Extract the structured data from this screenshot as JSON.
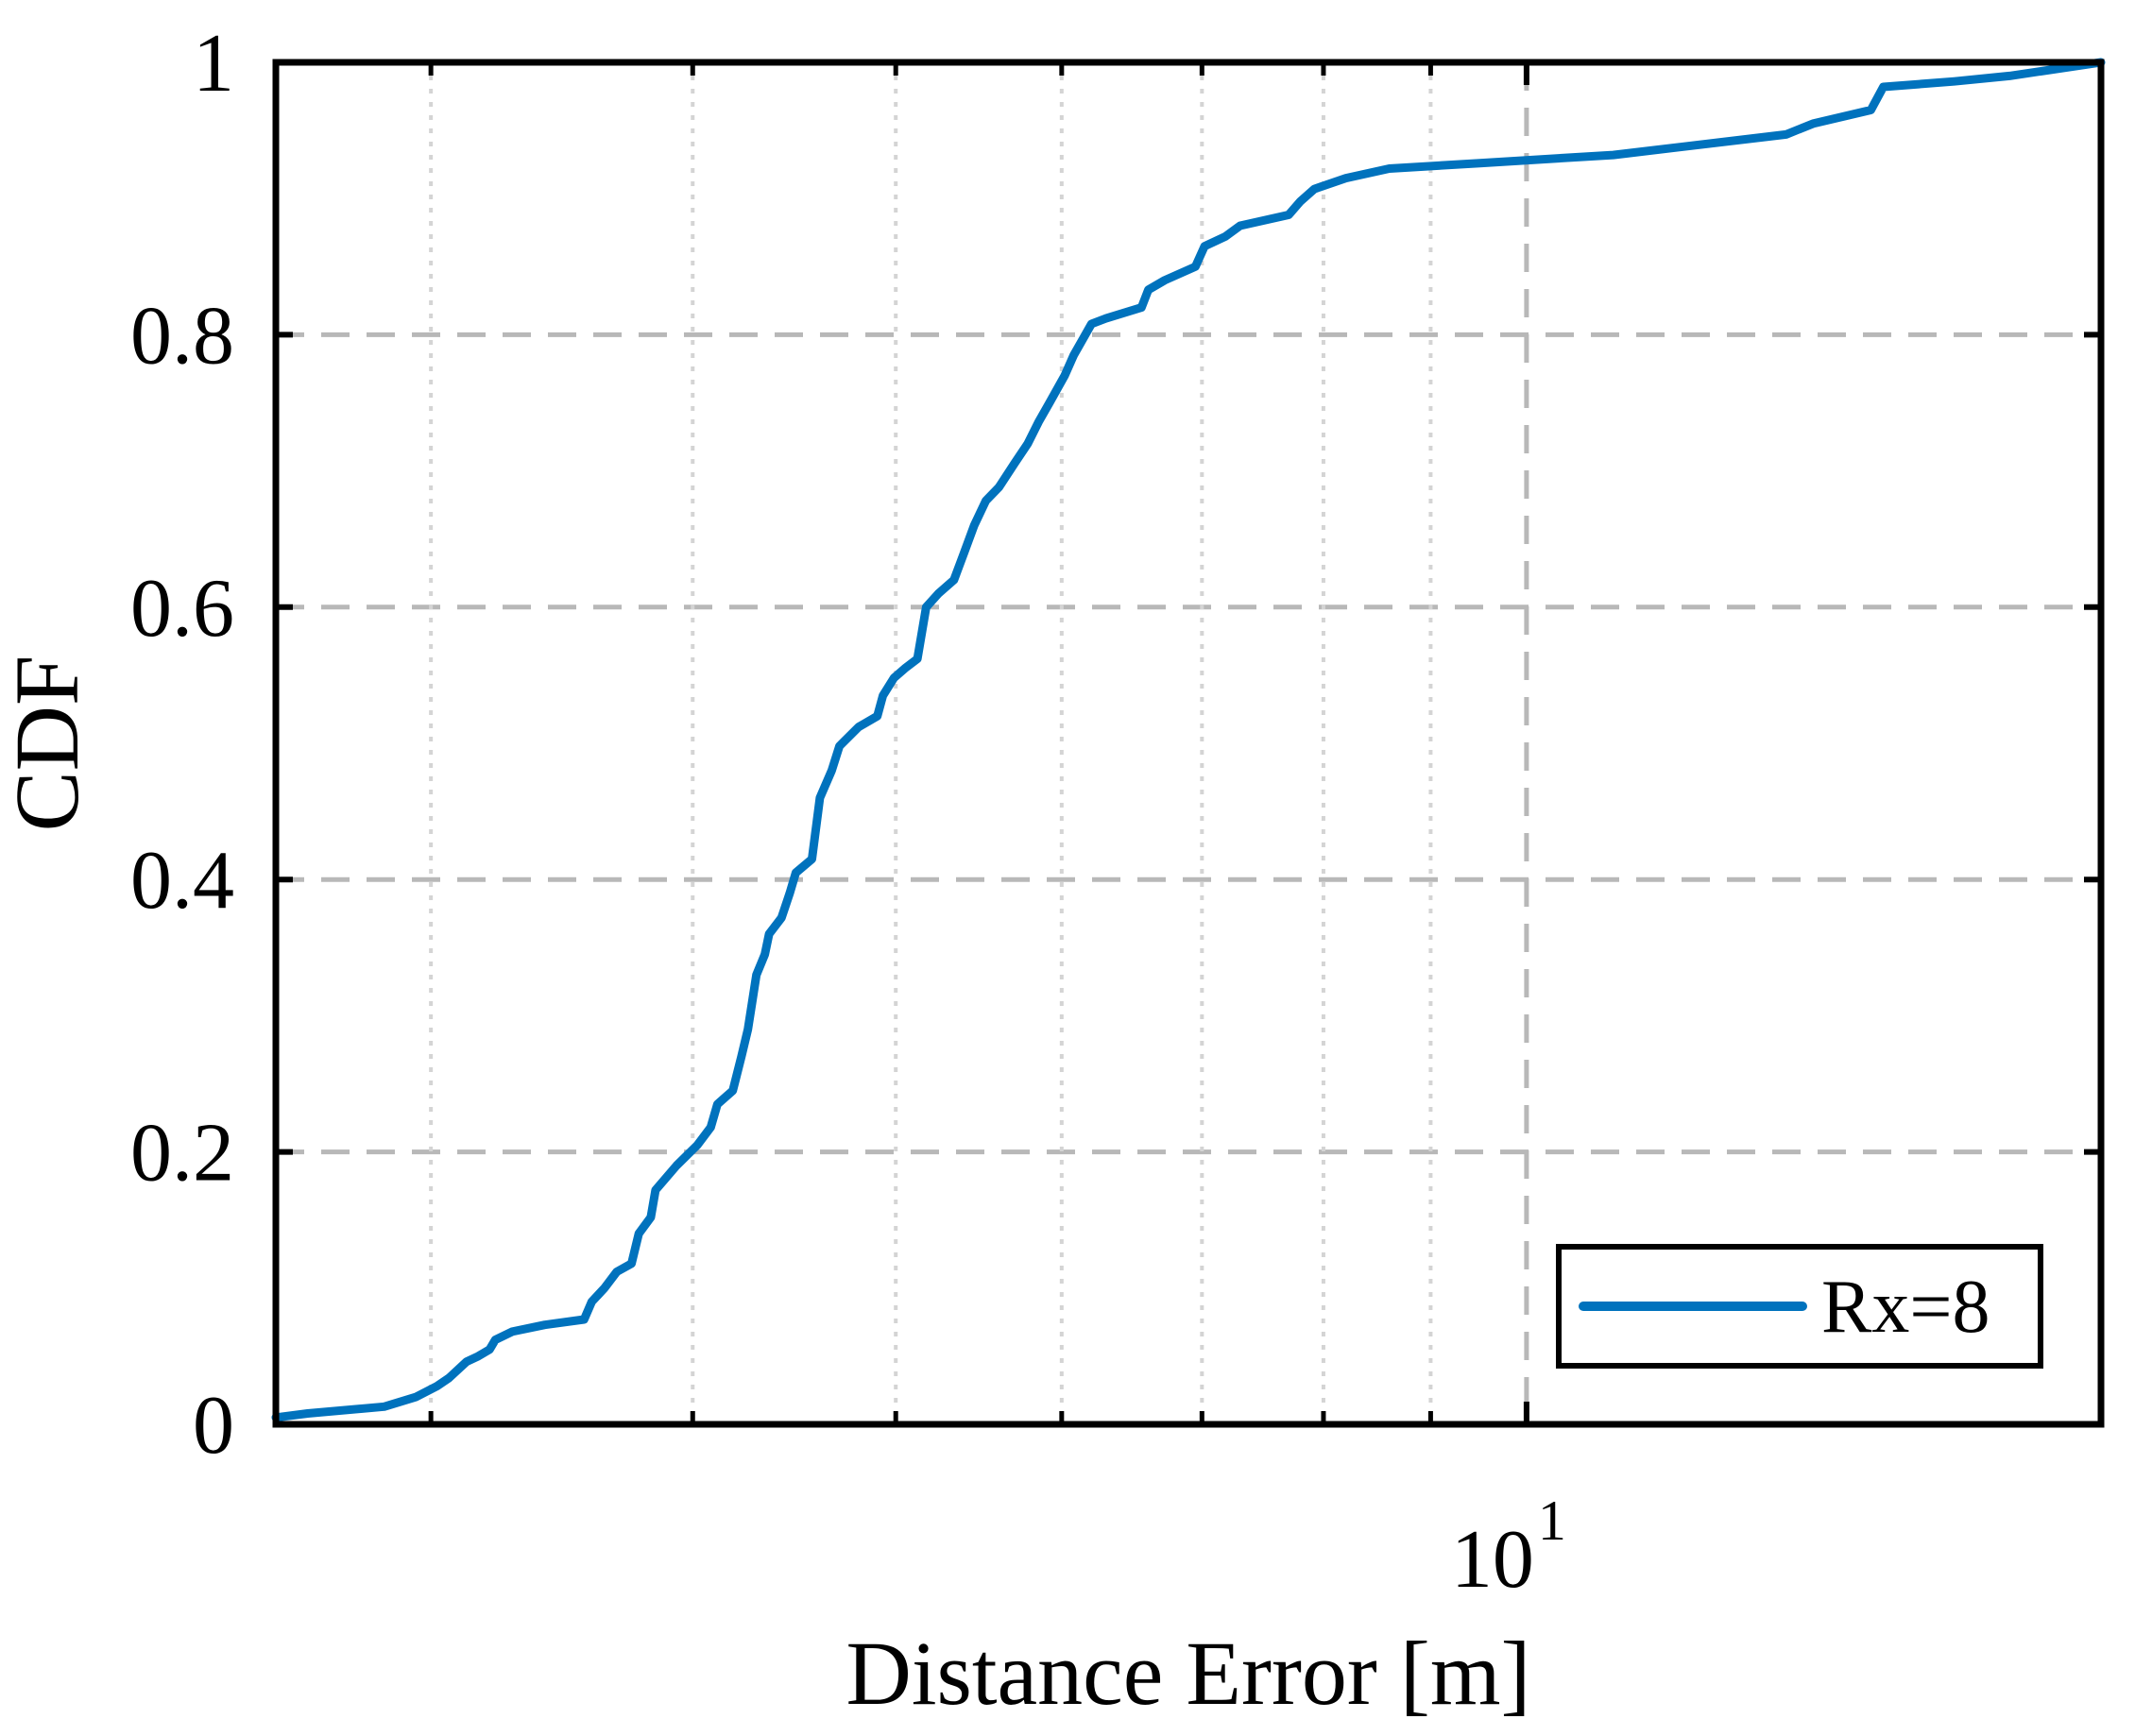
{
  "chart_data": {
    "type": "line",
    "xscale": "log",
    "xlim": [
      2.53,
      18.8
    ],
    "ylim": [
      0,
      1
    ],
    "xlabel": "Distance Error [m]",
    "ylabel": "CDF",
    "grid": true,
    "legend_position": "bottom-right",
    "x_tick_labels": [
      {
        "value": 10,
        "base": "10",
        "exponent": "1"
      }
    ],
    "x_minor_ticks": [
      3,
      4,
      5,
      6,
      7,
      8,
      9,
      20
    ],
    "y_ticks": [
      {
        "value": 0,
        "label": "0"
      },
      {
        "value": 0.2,
        "label": "0.2"
      },
      {
        "value": 0.4,
        "label": "0.4"
      },
      {
        "value": 0.6,
        "label": "0.6"
      },
      {
        "value": 0.8,
        "label": "0.8"
      },
      {
        "value": 1,
        "label": "1"
      }
    ],
    "series": [
      {
        "name": "Rx=8",
        "color": "#0072BD",
        "points": [
          [
            2.53,
            0.005
          ],
          [
            2.62,
            0.008
          ],
          [
            2.85,
            0.013
          ],
          [
            2.95,
            0.02
          ],
          [
            3.02,
            0.028
          ],
          [
            3.06,
            0.034
          ],
          [
            3.12,
            0.046
          ],
          [
            3.16,
            0.05
          ],
          [
            3.2,
            0.055
          ],
          [
            3.22,
            0.062
          ],
          [
            3.28,
            0.068
          ],
          [
            3.4,
            0.073
          ],
          [
            3.55,
            0.077
          ],
          [
            3.58,
            0.09
          ],
          [
            3.63,
            0.1
          ],
          [
            3.68,
            0.112
          ],
          [
            3.74,
            0.118
          ],
          [
            3.77,
            0.14
          ],
          [
            3.82,
            0.152
          ],
          [
            3.84,
            0.172
          ],
          [
            3.93,
            0.19
          ],
          [
            4.02,
            0.205
          ],
          [
            4.08,
            0.218
          ],
          [
            4.11,
            0.235
          ],
          [
            4.18,
            0.245
          ],
          [
            4.22,
            0.27
          ],
          [
            4.25,
            0.29
          ],
          [
            4.27,
            0.31
          ],
          [
            4.29,
            0.33
          ],
          [
            4.33,
            0.345
          ],
          [
            4.35,
            0.36
          ],
          [
            4.41,
            0.372
          ],
          [
            4.45,
            0.39
          ],
          [
            4.48,
            0.405
          ],
          [
            4.56,
            0.415
          ],
          [
            4.6,
            0.46
          ],
          [
            4.66,
            0.48
          ],
          [
            4.7,
            0.498
          ],
          [
            4.8,
            0.512
          ],
          [
            4.9,
            0.52
          ],
          [
            4.93,
            0.535
          ],
          [
            4.99,
            0.548
          ],
          [
            5.05,
            0.555
          ],
          [
            5.12,
            0.562
          ],
          [
            5.17,
            0.6
          ],
          [
            5.24,
            0.61
          ],
          [
            5.33,
            0.62
          ],
          [
            5.39,
            0.64
          ],
          [
            5.45,
            0.66
          ],
          [
            5.52,
            0.678
          ],
          [
            5.6,
            0.688
          ],
          [
            5.7,
            0.706
          ],
          [
            5.78,
            0.72
          ],
          [
            5.85,
            0.736
          ],
          [
            5.92,
            0.75
          ],
          [
            6.02,
            0.77
          ],
          [
            6.08,
            0.785
          ],
          [
            6.2,
            0.808
          ],
          [
            6.3,
            0.812
          ],
          [
            6.55,
            0.82
          ],
          [
            6.6,
            0.833
          ],
          [
            6.72,
            0.84
          ],
          [
            6.95,
            0.85
          ],
          [
            7.02,
            0.865
          ],
          [
            7.18,
            0.872
          ],
          [
            7.3,
            0.88
          ],
          [
            7.7,
            0.888
          ],
          [
            7.8,
            0.898
          ],
          [
            7.92,
            0.907
          ],
          [
            8.2,
            0.915
          ],
          [
            8.6,
            0.922
          ],
          [
            9.5,
            0.926
          ],
          [
            11.0,
            0.932
          ],
          [
            13.3,
            0.947
          ],
          [
            13.7,
            0.955
          ],
          [
            14.6,
            0.965
          ],
          [
            14.8,
            0.982
          ],
          [
            16.0,
            0.986
          ],
          [
            17.0,
            0.99
          ],
          [
            18.8,
            1.0
          ]
        ]
      }
    ]
  }
}
